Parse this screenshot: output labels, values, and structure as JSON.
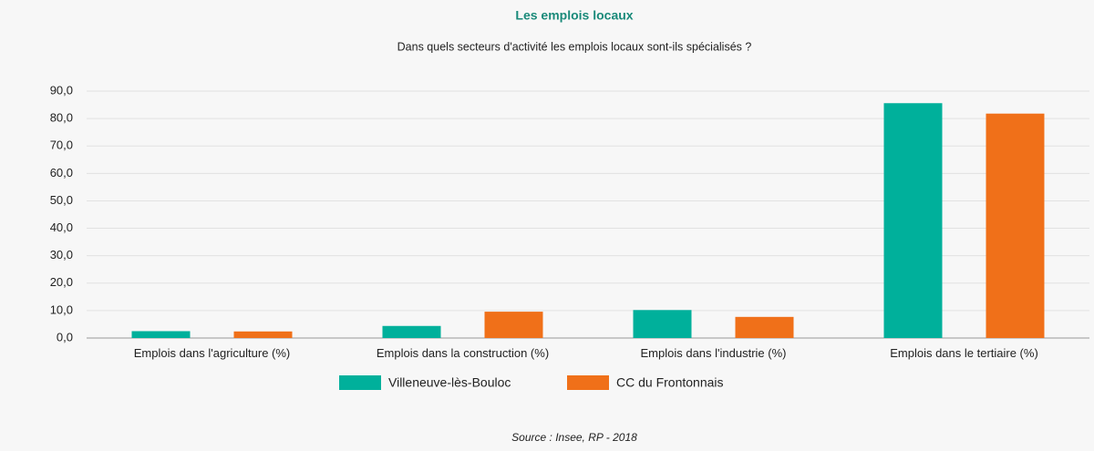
{
  "chart_data": {
    "type": "bar",
    "title": "Les emplois locaux",
    "subtitle": "Dans quels secteurs d'activité les emplois locaux sont-ils spécialisés ?",
    "source": "Source : Insee, RP - 2018",
    "categories": [
      "Emplois dans l'agriculture (%)",
      "Emplois dans la construction (%)",
      "Emplois dans l'industrie (%)",
      "Emplois dans le tertiaire (%)"
    ],
    "series": [
      {
        "name": "Villeneuve-lès-Bouloc",
        "color": "#00b09b",
        "values": [
          2.5,
          4.4,
          10.2,
          85.6
        ]
      },
      {
        "name": "CC du Frontonnais",
        "color": "#f07019",
        "values": [
          2.4,
          9.6,
          7.7,
          81.8
        ]
      }
    ],
    "ylim": [
      0,
      90
    ],
    "yticks": [
      {
        "value": 0,
        "label": "0,0"
      },
      {
        "value": 10,
        "label": "10,0"
      },
      {
        "value": 20,
        "label": "20,0"
      },
      {
        "value": 30,
        "label": "30,0"
      },
      {
        "value": 40,
        "label": "40,0"
      },
      {
        "value": 50,
        "label": "50,0"
      },
      {
        "value": 60,
        "label": "60,0"
      },
      {
        "value": 70,
        "label": "70,0"
      },
      {
        "value": 80,
        "label": "80,0"
      },
      {
        "value": 90,
        "label": "90,0"
      }
    ],
    "grid": true
  }
}
